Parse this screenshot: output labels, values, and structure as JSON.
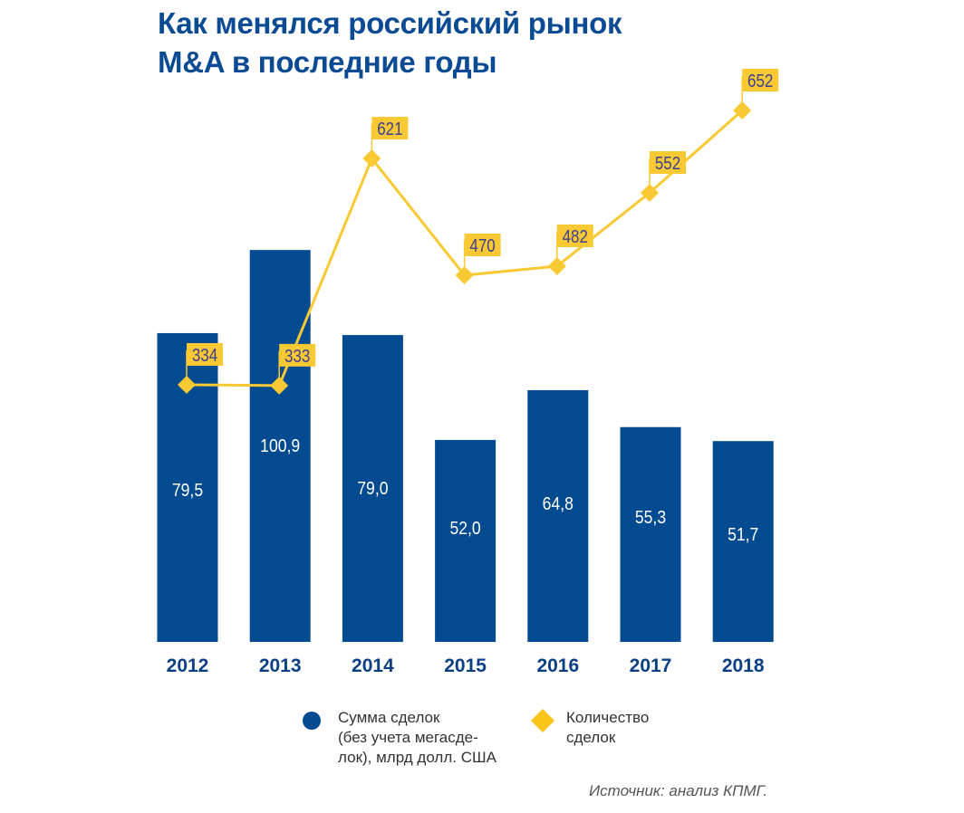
{
  "title_line1": "Как менялся российский рынок",
  "title_line2": "M&A в последние годы",
  "colors": {
    "bar": "#034b91",
    "line": "#f9c933",
    "label_bg": "#f9c933",
    "label_text": "#3d3f8f",
    "title": "#0b4b94",
    "axis_text": "#0b3f84"
  },
  "chart_data": {
    "type": "bar",
    "title": "Как менялся российский рынок M&A в последние годы",
    "categories": [
      "2012",
      "2013",
      "2014",
      "2015",
      "2016",
      "2017",
      "2018"
    ],
    "series": [
      {
        "name": "Сумма сделок (без учета мегасделок), млрд долл. США",
        "type": "bar",
        "values": [
          79.5,
          100.9,
          79.0,
          52.0,
          64.8,
          55.3,
          51.7
        ],
        "labels": [
          "79,5",
          "100,9",
          "79,0",
          "52,0",
          "64,8",
          "55,3",
          "51,7"
        ]
      },
      {
        "name": "Количество сделок",
        "type": "line",
        "values": [
          334,
          333,
          621,
          470,
          482,
          552,
          652
        ],
        "labels": [
          "334",
          "333",
          "621",
          "470",
          "482",
          "552",
          "652"
        ]
      }
    ],
    "xlabel": "",
    "ylabel": "",
    "grid": false,
    "legend": "bottom"
  },
  "legend": {
    "bar_line1": "Сумма сделок",
    "bar_line2": "(без учета мегасде-",
    "bar_line3": "лок), млрд долл. США",
    "line_line1": "Количество",
    "line_line2": "сделок"
  },
  "source": "Источник: анализ КПМГ."
}
